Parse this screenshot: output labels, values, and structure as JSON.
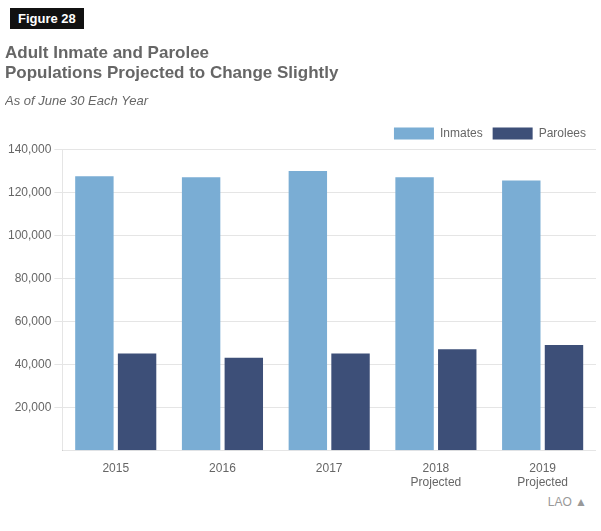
{
  "chart_data": {
    "type": "bar",
    "title": "Adult Inmate and Parolee\nPopulations Projected to Change Slightly",
    "subtitle": "As of June 30 Each Year",
    "annotations": [
      "Figure 28",
      "LAO ▲"
    ],
    "categories": [
      "2015",
      "2016",
      "2017",
      "2018\nProjected",
      "2019\nProjected"
    ],
    "series": [
      {
        "name": "Inmates",
        "color": "#7aadd4",
        "values": [
          127500,
          127000,
          130000,
          127000,
          125500
        ]
      },
      {
        "name": "Parolees",
        "color": "#3d4f78",
        "values": [
          45000,
          43000,
          45000,
          47000,
          49000
        ]
      }
    ],
    "ylim": [
      0,
      140000
    ],
    "yticks": [
      {
        "value": 20000,
        "label": "20,000"
      },
      {
        "value": 40000,
        "label": "40,000"
      },
      {
        "value": 60000,
        "label": "60,000"
      },
      {
        "value": 80000,
        "label": "80,000"
      },
      {
        "value": 100000,
        "label": "100,000"
      },
      {
        "value": 120000,
        "label": "120,000"
      },
      {
        "value": 140000,
        "label": "140,000"
      }
    ],
    "grid": true,
    "legend": "top"
  }
}
